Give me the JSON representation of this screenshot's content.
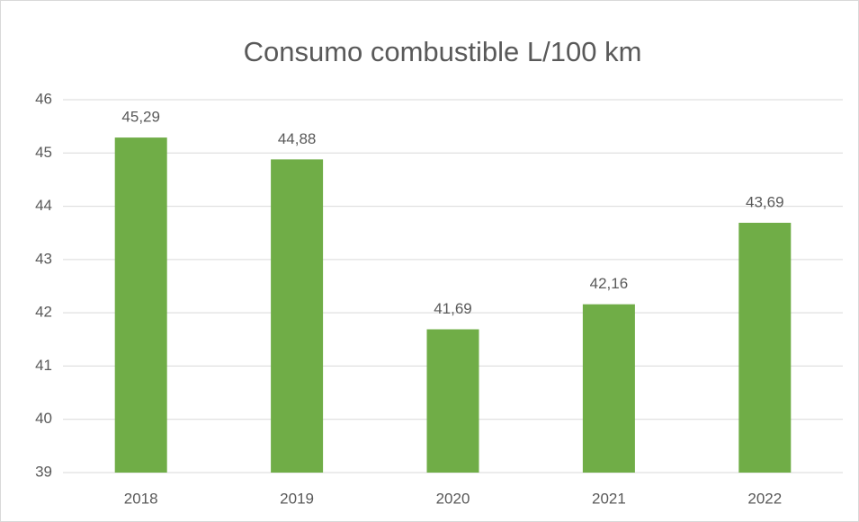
{
  "chart_data": {
    "type": "bar",
    "title": "Consumo combustible L/100 km",
    "categories": [
      "2018",
      "2019",
      "2020",
      "2021",
      "2022"
    ],
    "values": [
      45.29,
      44.88,
      41.69,
      42.16,
      43.69
    ],
    "value_labels": [
      "45,29",
      "44,88",
      "41,69",
      "42,16",
      "43,69"
    ],
    "color": "#70ad47",
    "ylim": [
      39,
      46
    ],
    "yticks": [
      39,
      40,
      41,
      42,
      43,
      44,
      45,
      46
    ],
    "grid": true
  }
}
